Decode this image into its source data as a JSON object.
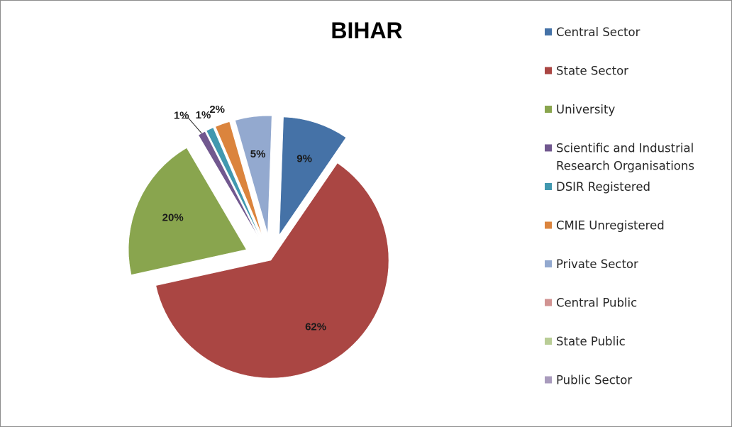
{
  "chart_data": {
    "type": "pie",
    "title": "BIHAR",
    "legend_position": "right",
    "slices": [
      {
        "name": "Central Sector",
        "value": 9,
        "label": "9%",
        "color": "#4572A7",
        "exploded": true
      },
      {
        "name": "State Sector",
        "value": 62,
        "label": "62%",
        "color": "#AA4643",
        "exploded": false
      },
      {
        "name": "University",
        "value": 20,
        "label": "20%",
        "color": "#89A54E",
        "exploded": true
      },
      {
        "name": "Scientific and Industrial Research Organisations",
        "legend_lines": [
          "Scientific and Industrial",
          "Research Organisations"
        ],
        "value": 1,
        "label": "1%",
        "color": "#71588F",
        "exploded": true
      },
      {
        "name": "DSIR Registered",
        "value": 1,
        "label": "1%",
        "color": "#4198AF",
        "exploded": true
      },
      {
        "name": "CMIE Unregistered",
        "value": 2,
        "label": "2%",
        "color": "#DB843D",
        "exploded": true
      },
      {
        "name": "Private Sector",
        "value": 5,
        "label": "5%",
        "color": "#93A9CF",
        "exploded": true
      },
      {
        "name": "Central Public",
        "value": 0,
        "label": "",
        "color": "#D19392",
        "exploded": true
      },
      {
        "name": "State Public",
        "value": 0,
        "label": "",
        "color": "#B9CD96",
        "exploded": true
      },
      {
        "name": "Public Sector",
        "value": 0,
        "label": "",
        "color": "#A99BBD",
        "exploded": true
      }
    ]
  }
}
